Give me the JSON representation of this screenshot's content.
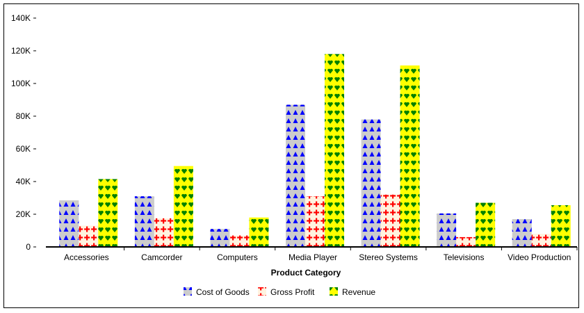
{
  "chart_data": {
    "type": "bar",
    "title": "",
    "xlabel": "Product Category",
    "ylabel": "",
    "ylim": [
      0,
      140000
    ],
    "yticks": [
      {
        "value": 0,
        "label": "0"
      },
      {
        "value": 20000,
        "label": "20K"
      },
      {
        "value": 40000,
        "label": "40K"
      },
      {
        "value": 60000,
        "label": "60K"
      },
      {
        "value": 80000,
        "label": "80K"
      },
      {
        "value": 100000,
        "label": "100K"
      },
      {
        "value": 120000,
        "label": "120K"
      },
      {
        "value": 140000,
        "label": "140K"
      }
    ],
    "categories": [
      "Accessories",
      "Camcorder",
      "Computers",
      "Media Player",
      "Stereo Systems",
      "Televisions",
      "Video Production"
    ],
    "series": [
      {
        "name": "Cost of Goods",
        "values": [
          28500,
          31000,
          11000,
          87000,
          78000,
          20500,
          17000
        ],
        "color": "#cccccc",
        "pattern_color": "#0000ff",
        "pattern": "triangles"
      },
      {
        "name": "Gross Profit",
        "values": [
          13000,
          17500,
          7000,
          31000,
          32000,
          6000,
          8000
        ],
        "color": "#fff3e0",
        "pattern_color": "#ff0000",
        "pattern": "crosses"
      },
      {
        "name": "Revenue",
        "values": [
          41500,
          49500,
          18000,
          118000,
          111000,
          27000,
          25500
        ],
        "color": "#ffff00",
        "pattern_color": "#008000",
        "pattern": "hearts"
      }
    ],
    "grid": false,
    "legend_position": "bottom-center"
  }
}
